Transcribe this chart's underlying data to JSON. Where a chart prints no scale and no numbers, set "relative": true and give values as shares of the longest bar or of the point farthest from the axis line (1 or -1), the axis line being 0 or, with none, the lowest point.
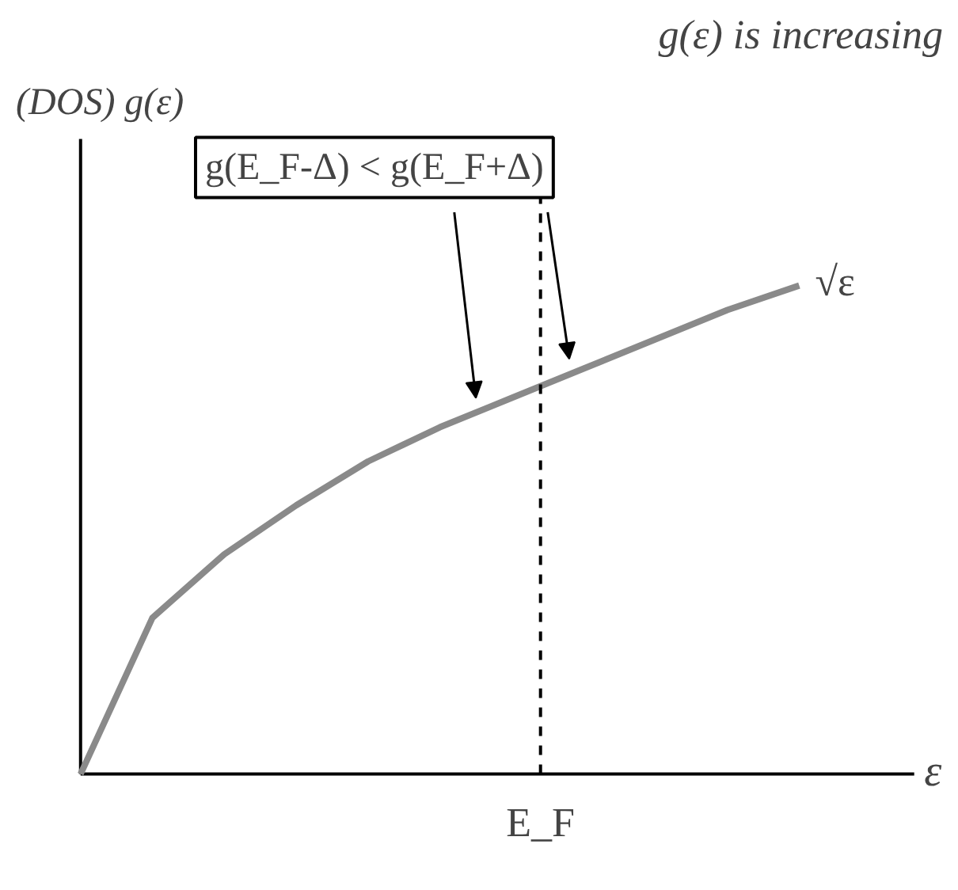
{
  "chart_data": {
    "type": "line",
    "title": "g(ε) is increasing",
    "xlabel": "ε",
    "ylabel": "(DOS) g(ε)",
    "relative": true,
    "categories": [
      null,
      null,
      null,
      null,
      null,
      null,
      null,
      null,
      null,
      null,
      null
    ],
    "series": [
      {
        "color": "#8a8a8a",
        "values": [
          0,
          0.32,
          0.45,
          0.55,
          0.64,
          0.71,
          0.77,
          0.83,
          0.89,
          0.95,
          1.0
        ]
      }
    ],
    "annotations": [
      "g(E_F-Δ) < g(E_F+Δ)",
      "√ε",
      "E_F"
    ],
    "grid": false,
    "line_style": "solid",
    "marker": "none"
  }
}
